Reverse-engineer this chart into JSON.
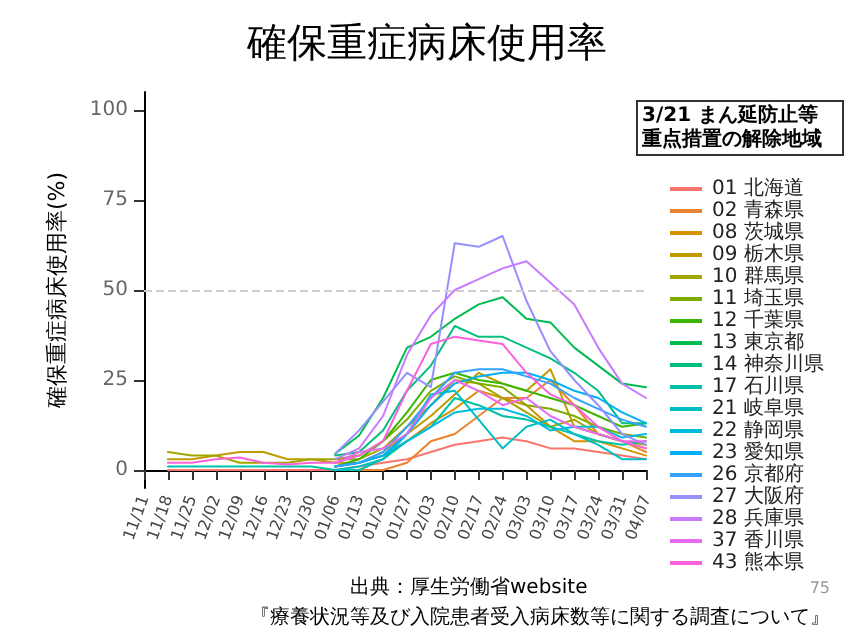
{
  "chart_data": {
    "type": "line",
    "title": "確保重症病床使用率",
    "ylabel": "確保重症病床使用率(%)",
    "legend_title": "3/21 まん延防止等重点措置の解除地域",
    "categories": [
      "11/11",
      "11/18",
      "11/25",
      "12/02",
      "12/09",
      "12/16",
      "12/23",
      "12/30",
      "01/06",
      "01/13",
      "01/20",
      "01/27",
      "02/03",
      "02/10",
      "02/17",
      "02/24",
      "03/03",
      "03/10",
      "03/17",
      "03/24",
      "03/31",
      "04/07"
    ],
    "ylim": [
      -5,
      105
    ],
    "yticks": [
      0,
      25,
      50,
      75,
      100
    ],
    "grid": false,
    "legend": "right",
    "marker": "none",
    "line_style": "solid",
    "ref_lines": [
      {
        "axis": "y",
        "value": 50,
        "color": "#d0d0d0",
        "line_style": "dashed"
      }
    ],
    "series": [
      {
        "name": "01 北海道",
        "color": "#F8766D",
        "values": [
          null,
          0,
          0,
          0,
          0,
          0,
          0,
          0,
          0,
          1,
          2,
          3,
          5,
          7,
          8,
          9,
          8,
          6,
          6,
          5,
          4,
          3
        ]
      },
      {
        "name": "02 青森県",
        "color": "#EA8331",
        "values": [
          null,
          null,
          null,
          null,
          null,
          null,
          null,
          null,
          0,
          0,
          0,
          2,
          8,
          10,
          15,
          20,
          20,
          25,
          18,
          10,
          8,
          5
        ]
      },
      {
        "name": "08 茨城県",
        "color": "#D89000",
        "values": [
          null,
          null,
          null,
          null,
          null,
          null,
          null,
          null,
          1,
          2,
          4,
          8,
          13,
          17,
          22,
          20,
          18,
          12,
          8,
          8,
          6,
          4
        ]
      },
      {
        "name": "09 栃木県",
        "color": "#C09B00",
        "values": [
          null,
          3,
          3,
          4,
          5,
          5,
          3,
          3,
          2,
          2,
          5,
          10,
          15,
          21,
          27,
          24,
          22,
          28,
          12,
          10,
          8,
          6
        ]
      },
      {
        "name": "10 群馬県",
        "color": "#A3A500",
        "values": [
          null,
          5,
          4,
          4,
          2,
          2,
          2,
          3,
          3,
          3,
          6,
          12,
          18,
          25,
          24,
          20,
          16,
          12,
          14,
          10,
          8,
          7
        ]
      },
      {
        "name": "11 埼玉県",
        "color": "#7CAE00",
        "values": [
          null,
          null,
          null,
          null,
          null,
          null,
          null,
          null,
          3,
          4,
          8,
          14,
          22,
          26,
          24,
          23,
          18,
          17,
          15,
          12,
          10,
          9
        ]
      },
      {
        "name": "12 千葉県",
        "color": "#39B600",
        "values": [
          null,
          null,
          null,
          null,
          null,
          null,
          null,
          null,
          1,
          3,
          8,
          16,
          25,
          27,
          25,
          24,
          22,
          20,
          18,
          15,
          12,
          13
        ]
      },
      {
        "name": "13 東京都",
        "color": "#00BB4E",
        "values": [
          null,
          null,
          null,
          null,
          null,
          null,
          null,
          null,
          4.5,
          9.6,
          20,
          34,
          37,
          42,
          46,
          48,
          42,
          41,
          34,
          29,
          24,
          23
        ]
      },
      {
        "name": "14 神奈川県",
        "color": "#00BF7D",
        "values": [
          null,
          null,
          null,
          null,
          null,
          null,
          null,
          null,
          4,
          5,
          11,
          22,
          29,
          40,
          37,
          37,
          34,
          31,
          27,
          22,
          13,
          13
        ]
      },
      {
        "name": "17 石川県",
        "color": "#00C1A3",
        "values": [
          null,
          1,
          1,
          1,
          1,
          1,
          1,
          1,
          0,
          0,
          3,
          8,
          12,
          20,
          18,
          15,
          14,
          12,
          10,
          8,
          7,
          8
        ]
      },
      {
        "name": "21 岐阜県",
        "color": "#00BFC4",
        "values": [
          null,
          null,
          null,
          null,
          null,
          null,
          null,
          null,
          0,
          1,
          3,
          10,
          21,
          22,
          14,
          6,
          12,
          14,
          10,
          7,
          3,
          3
        ]
      },
      {
        "name": "22 静岡県",
        "color": "#00BAE0",
        "values": [
          null,
          null,
          null,
          null,
          null,
          null,
          null,
          null,
          1,
          2,
          4,
          8,
          12,
          16,
          17,
          17,
          15,
          11,
          12,
          12,
          9,
          10
        ]
      },
      {
        "name": "23 愛知県",
        "color": "#00B0F6",
        "values": [
          null,
          null,
          null,
          null,
          null,
          null,
          null,
          null,
          1,
          2,
          4,
          10,
          18,
          24,
          26,
          27,
          27,
          25,
          22,
          20,
          16,
          13
        ]
      },
      {
        "name": "26 京都府",
        "color": "#35A2FF",
        "values": [
          null,
          null,
          null,
          null,
          null,
          null,
          null,
          null,
          1,
          2,
          5,
          12,
          20,
          27,
          28,
          28,
          26,
          24,
          20,
          17,
          14,
          12
        ]
      },
      {
        "name": "27 大阪府",
        "color": "#9590FF",
        "values": [
          null,
          null,
          null,
          null,
          null,
          null,
          null,
          null,
          4.5,
          11,
          19,
          27,
          23,
          63,
          62,
          65,
          47,
          33,
          25,
          18,
          10,
          7
        ]
      },
      {
        "name": "28 兵庫県",
        "color": "#C77CFF",
        "values": [
          null,
          null,
          null,
          null,
          null,
          null,
          null,
          null,
          3,
          6,
          15,
          32,
          43,
          50,
          53,
          56,
          58,
          52,
          46,
          34,
          24,
          20
        ]
      },
      {
        "name": "37 香川県",
        "color": "#E76BF3",
        "values": [
          null,
          null,
          null,
          null,
          null,
          null,
          null,
          null,
          2,
          5,
          6,
          10,
          20,
          25,
          22,
          18,
          20,
          15,
          12,
          10,
          8,
          8
        ]
      },
      {
        "name": "43 熊本県",
        "color": "#FA62DB",
        "values": [
          null,
          2,
          2,
          3,
          3.5,
          2,
          1.5,
          2,
          2,
          4,
          8,
          22,
          35,
          37,
          36,
          35,
          27,
          21,
          18,
          12,
          8,
          6
        ]
      }
    ],
    "annotations": [
      "出典：厚生労働省website",
      "75",
      "『療養状況等及び入院患者受入病床数等に関する調査について』"
    ]
  }
}
